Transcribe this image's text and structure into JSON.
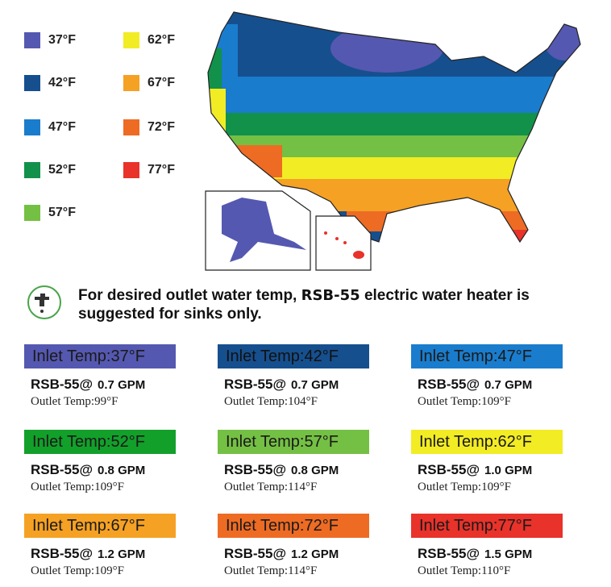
{
  "legend": [
    {
      "label": "37°F",
      "color": "#5558b0"
    },
    {
      "label": "42°F",
      "color": "#164f8e"
    },
    {
      "label": "47°F",
      "color": "#1a7ccc"
    },
    {
      "label": "52°F",
      "color": "#12914a"
    },
    {
      "label": "57°F",
      "color": "#74c044"
    },
    {
      "label": "62°F",
      "color": "#f2ec24"
    },
    {
      "label": "67°F",
      "color": "#f5a124"
    },
    {
      "label": "72°F",
      "color": "#ee6b24"
    },
    {
      "label": "77°F",
      "color": "#e8322a"
    }
  ],
  "notice": {
    "before": "For desired outlet water temp, ",
    "model": "RSB-55",
    "after": " electric water heater is suggested for sinks only."
  },
  "cards": [
    {
      "inlet": "Inlet Temp:37°F",
      "color": "#5558b0",
      "model": "RSB-55@",
      "flow": "0.7 GPM",
      "outlet": "Outlet Temp:99°F"
    },
    {
      "inlet": "Inlet Temp:42°F",
      "color": "#164f8e",
      "model": "RSB-55@",
      "flow": "0.7 GPM",
      "outlet": "Outlet Temp:104°F"
    },
    {
      "inlet": "Inlet Temp:47°F",
      "color": "#1a7ccc",
      "model": "RSB-55@",
      "flow": "0.7 GPM",
      "outlet": "Outlet Temp:109°F"
    },
    {
      "inlet": "Inlet Temp:52°F",
      "color": "#12a02a",
      "model": "RSB-55@",
      "flow": "0.8 GPM",
      "outlet": "Outlet Temp:109°F"
    },
    {
      "inlet": "Inlet Temp:57°F",
      "color": "#74c044",
      "model": "RSB-55@",
      "flow": "0.8 GPM",
      "outlet": "Outlet Temp:114°F"
    },
    {
      "inlet": "Inlet Temp:62°F",
      "color": "#f2ec24",
      "model": "RSB-55@",
      "flow": "1.0 GPM",
      "outlet": "Outlet Temp:109°F"
    },
    {
      "inlet": "Inlet Temp:67°F",
      "color": "#f5a124",
      "model": "RSB-55@",
      "flow": "1.2 GPM",
      "outlet": "Outlet Temp:109°F"
    },
    {
      "inlet": "Inlet Temp:72°F",
      "color": "#ee6b24",
      "model": "RSB-55@",
      "flow": "1.2 GPM",
      "outlet": "Outlet Temp:114°F"
    },
    {
      "inlet": "Inlet Temp:77°F",
      "color": "#e8322a",
      "model": "RSB-55@",
      "flow": "1.5 GPM",
      "outlet": "Outlet Temp:110°F"
    }
  ]
}
